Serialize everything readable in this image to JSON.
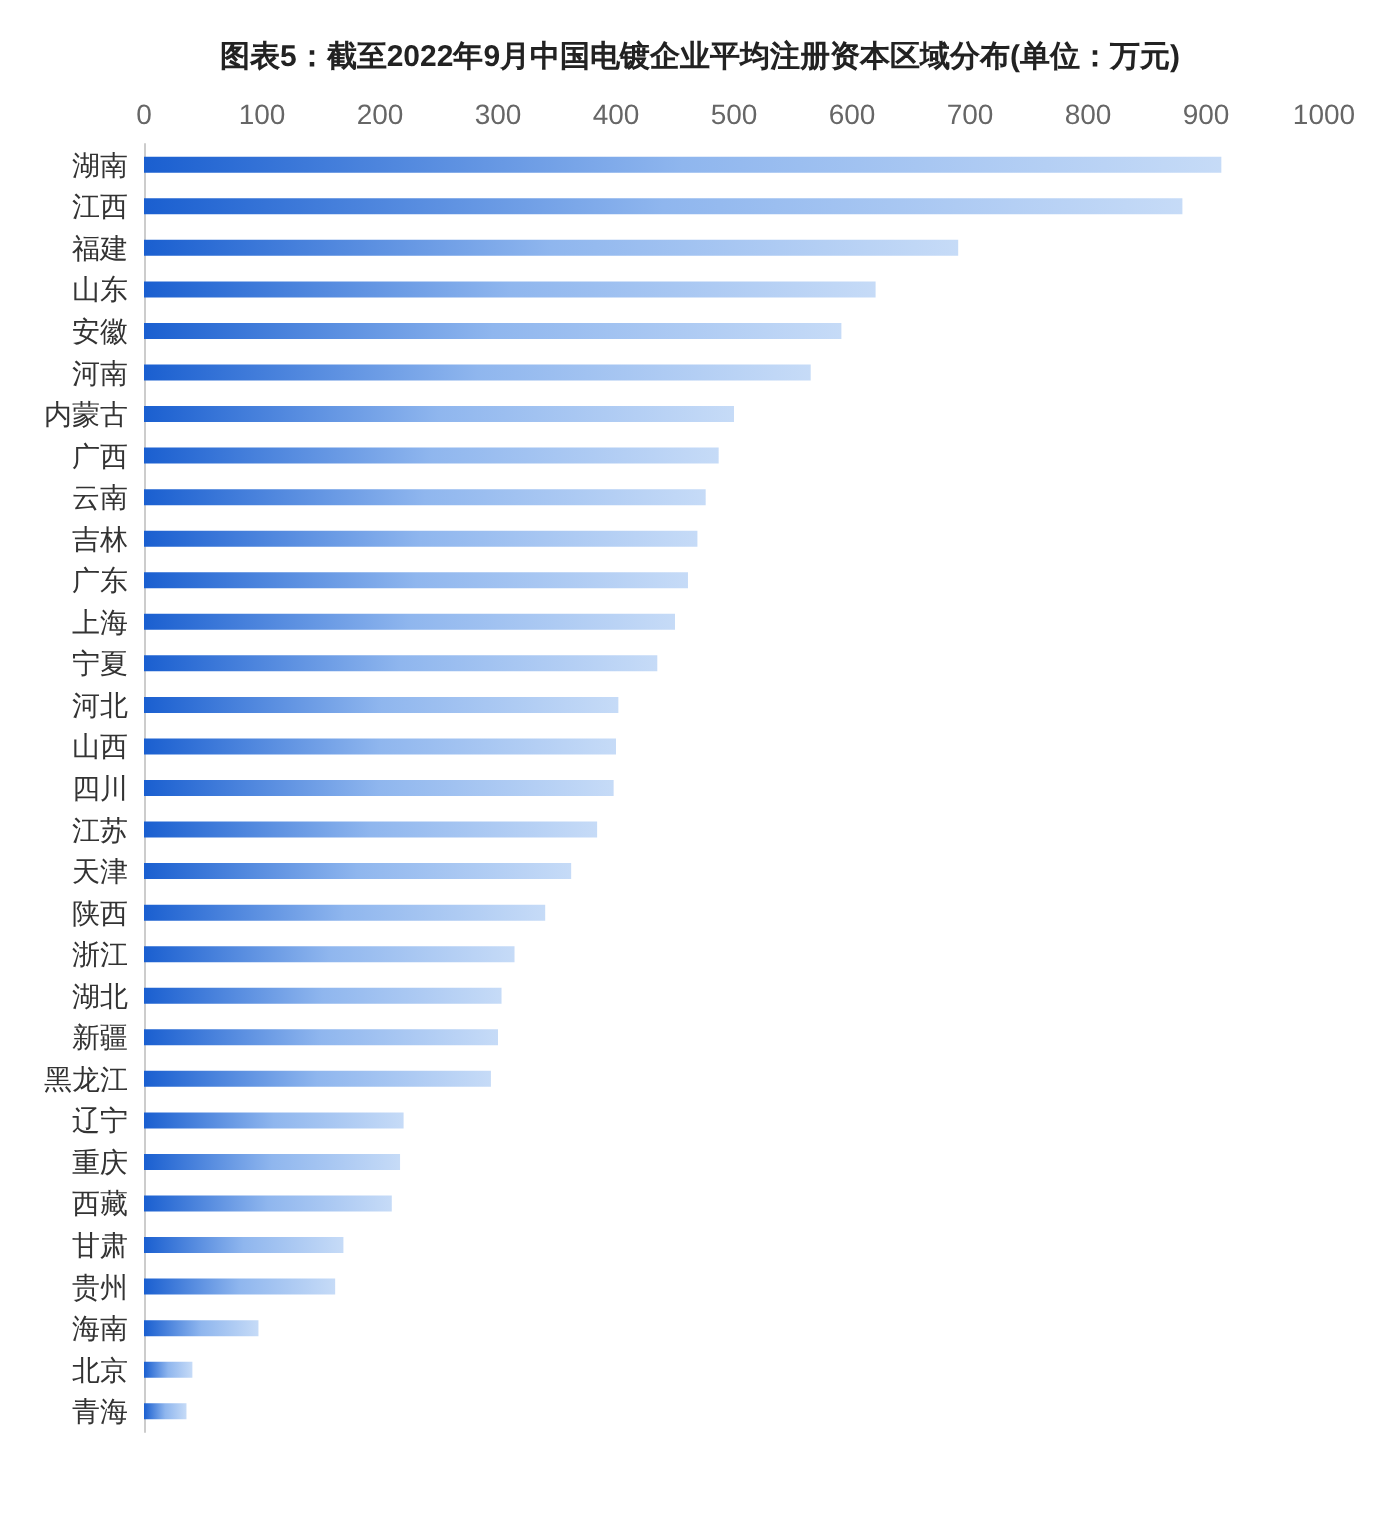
{
  "chart_data": {
    "type": "bar",
    "orientation": "horizontal",
    "title": "图表5：截至2022年9月中国电镀企业平均注册资本区域分布(单位：万元)",
    "categories": [
      "湖南",
      "江西",
      "福建",
      "山东",
      "安徽",
      "河南",
      "内蒙古",
      "广西",
      "云南",
      "吉林",
      "广东",
      "上海",
      "宁夏",
      "河北",
      "山西",
      "四川",
      "江苏",
      "天津",
      "陕西",
      "浙江",
      "湖北",
      "新疆",
      "黑龙江",
      "辽宁",
      "重庆",
      "西藏",
      "甘肃",
      "贵州",
      "海南",
      "北京",
      "青海"
    ],
    "values": [
      913,
      880,
      690,
      620,
      591,
      565,
      500,
      487,
      476,
      469,
      461,
      450,
      435,
      402,
      400,
      398,
      384,
      362,
      340,
      314,
      303,
      300,
      294,
      220,
      217,
      210,
      169,
      162,
      97,
      41,
      36
    ],
    "color": "#1a5fd0",
    "xlim": [
      0,
      1000
    ],
    "xticks": [
      0,
      100,
      200,
      300,
      400,
      500,
      600,
      700,
      800,
      900,
      1000
    ],
    "grid": false
  }
}
